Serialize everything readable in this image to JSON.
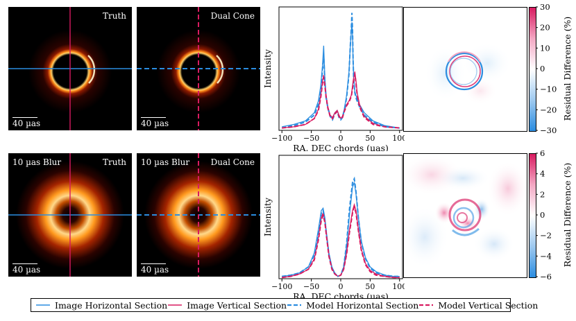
{
  "colors": {
    "blue": "#2b8de0",
    "pink": "#d81b60"
  },
  "top_row": {
    "truth": {
      "label": "Truth",
      "scale": "40 µas"
    },
    "model": {
      "label": "Dual Cone",
      "scale": "40 µas"
    }
  },
  "bottom_row": {
    "blur_label": "10 µas Blur",
    "truth": {
      "label": "Truth",
      "scale": "40 µas"
    },
    "model": {
      "label": "Dual Cone",
      "scale": "40 µas"
    }
  },
  "chart_data": [
    {
      "type": "line",
      "title": "",
      "xlabel": "RA. DEC chords (µas)",
      "ylabel": "Intensity",
      "xlim": [
        -105,
        105
      ],
      "xticks": [
        -100,
        -50,
        0,
        50,
        100
      ],
      "series": [
        {
          "name": "Image Horizontal Section",
          "style": "solid",
          "color": "#2b8de0",
          "x": [
            -100,
            -80,
            -60,
            -45,
            -38,
            -34,
            -31,
            -29,
            -27,
            -25,
            -22,
            -18,
            -14,
            -10,
            -6,
            -3,
            0,
            3,
            6,
            10,
            14,
            16,
            18,
            19,
            20,
            21,
            22,
            24,
            27,
            32,
            40,
            55,
            75,
            100
          ],
          "y": [
            0.03,
            0.05,
            0.08,
            0.15,
            0.25,
            0.38,
            0.55,
            0.72,
            0.45,
            0.3,
            0.2,
            0.13,
            0.1,
            0.15,
            0.17,
            0.12,
            0.1,
            0.12,
            0.18,
            0.3,
            0.5,
            0.7,
            0.85,
            0.92,
            0.8,
            0.6,
            0.45,
            0.33,
            0.28,
            0.22,
            0.15,
            0.08,
            0.04,
            0.02
          ]
        },
        {
          "name": "Image Vertical Section",
          "style": "solid",
          "color": "#d81b60",
          "x": [
            -100,
            -80,
            -60,
            -45,
            -38,
            -34,
            -31,
            -29,
            -27,
            -25,
            -22,
            -18,
            -14,
            -10,
            -6,
            -3,
            0,
            3,
            6,
            10,
            14,
            18,
            20,
            22,
            24,
            26,
            28,
            32,
            40,
            55,
            75,
            100
          ],
          "y": [
            0.02,
            0.03,
            0.05,
            0.1,
            0.18,
            0.3,
            0.42,
            0.47,
            0.4,
            0.3,
            0.2,
            0.13,
            0.11,
            0.15,
            0.17,
            0.13,
            0.1,
            0.12,
            0.17,
            0.22,
            0.25,
            0.3,
            0.38,
            0.45,
            0.5,
            0.42,
            0.32,
            0.22,
            0.12,
            0.06,
            0.03,
            0.02
          ]
        },
        {
          "name": "Model Horizontal Section",
          "style": "dashed",
          "color": "#2b8de0",
          "x": [
            -100,
            -80,
            -60,
            -45,
            -38,
            -34,
            -31,
            -29,
            -27,
            -25,
            -22,
            -18,
            -14,
            -10,
            -6,
            -3,
            0,
            3,
            6,
            10,
            14,
            16,
            18,
            19,
            20,
            21,
            22,
            24,
            27,
            32,
            40,
            55,
            75,
            100
          ],
          "y": [
            0.02,
            0.04,
            0.07,
            0.13,
            0.22,
            0.35,
            0.52,
            0.64,
            0.42,
            0.28,
            0.19,
            0.12,
            0.09,
            0.14,
            0.16,
            0.11,
            0.09,
            0.11,
            0.17,
            0.28,
            0.48,
            0.7,
            0.88,
            1.0,
            0.85,
            0.6,
            0.44,
            0.32,
            0.26,
            0.2,
            0.13,
            0.07,
            0.03,
            0.02
          ]
        },
        {
          "name": "Model Vertical Section",
          "style": "dashed",
          "color": "#d81b60",
          "x": [
            -100,
            -80,
            -60,
            -45,
            -38,
            -34,
            -31,
            -29,
            -27,
            -25,
            -22,
            -18,
            -14,
            -10,
            -6,
            -3,
            0,
            3,
            6,
            10,
            14,
            18,
            20,
            22,
            24,
            26,
            28,
            32,
            40,
            55,
            75,
            100
          ],
          "y": [
            0.02,
            0.03,
            0.05,
            0.1,
            0.17,
            0.28,
            0.4,
            0.45,
            0.38,
            0.29,
            0.19,
            0.12,
            0.1,
            0.14,
            0.16,
            0.12,
            0.1,
            0.11,
            0.16,
            0.21,
            0.24,
            0.29,
            0.36,
            0.43,
            0.48,
            0.4,
            0.3,
            0.2,
            0.11,
            0.05,
            0.03,
            0.02
          ]
        }
      ]
    },
    {
      "type": "line",
      "title": "",
      "xlabel": "RA. DEC chords (µas)",
      "ylabel": "Intensity",
      "xlim": [
        -105,
        105
      ],
      "xticks": [
        -100,
        -50,
        0,
        50,
        100
      ],
      "series": [
        {
          "name": "Image Horizontal Section",
          "style": "solid",
          "color": "#2b8de0",
          "x": [
            -100,
            -85,
            -70,
            -55,
            -45,
            -38,
            -33,
            -30,
            -27,
            -24,
            -20,
            -15,
            -10,
            -5,
            0,
            5,
            10,
            15,
            20,
            23,
            26,
            30,
            35,
            42,
            50,
            60,
            75,
            90,
            100
          ],
          "y": [
            0.02,
            0.03,
            0.05,
            0.1,
            0.22,
            0.42,
            0.58,
            0.6,
            0.52,
            0.38,
            0.22,
            0.1,
            0.05,
            0.02,
            0.03,
            0.1,
            0.28,
            0.55,
            0.78,
            0.82,
            0.72,
            0.52,
            0.32,
            0.18,
            0.1,
            0.06,
            0.03,
            0.02,
            0.02
          ]
        },
        {
          "name": "Image Vertical Section",
          "style": "solid",
          "color": "#d81b60",
          "x": [
            -100,
            -85,
            -70,
            -55,
            -45,
            -38,
            -33,
            -30,
            -27,
            -24,
            -20,
            -15,
            -10,
            -5,
            0,
            5,
            10,
            15,
            20,
            23,
            26,
            30,
            35,
            42,
            50,
            60,
            75,
            90,
            100
          ],
          "y": [
            0.01,
            0.02,
            0.04,
            0.08,
            0.17,
            0.35,
            0.52,
            0.56,
            0.5,
            0.36,
            0.2,
            0.09,
            0.04,
            0.02,
            0.03,
            0.08,
            0.22,
            0.42,
            0.58,
            0.63,
            0.58,
            0.42,
            0.25,
            0.13,
            0.07,
            0.04,
            0.02,
            0.01,
            0.01
          ]
        },
        {
          "name": "Model Horizontal Section",
          "style": "dashed",
          "color": "#2b8de0",
          "x": [
            -100,
            -85,
            -70,
            -55,
            -45,
            -38,
            -33,
            -30,
            -27,
            -24,
            -20,
            -15,
            -10,
            -5,
            0,
            5,
            10,
            15,
            20,
            23,
            26,
            30,
            35,
            42,
            50,
            60,
            75,
            90,
            100
          ],
          "y": [
            0.02,
            0.03,
            0.05,
            0.1,
            0.2,
            0.4,
            0.56,
            0.58,
            0.5,
            0.36,
            0.2,
            0.09,
            0.04,
            0.02,
            0.03,
            0.1,
            0.3,
            0.6,
            0.82,
            0.85,
            0.74,
            0.52,
            0.31,
            0.17,
            0.09,
            0.05,
            0.03,
            0.02,
            0.02
          ]
        },
        {
          "name": "Model Vertical Section",
          "style": "dashed",
          "color": "#d81b60",
          "x": [
            -100,
            -85,
            -70,
            -55,
            -45,
            -38,
            -33,
            -30,
            -27,
            -24,
            -20,
            -15,
            -10,
            -5,
            0,
            5,
            10,
            15,
            20,
            23,
            26,
            30,
            35,
            42,
            50,
            60,
            75,
            90,
            100
          ],
          "y": [
            0.01,
            0.02,
            0.04,
            0.08,
            0.16,
            0.33,
            0.5,
            0.54,
            0.48,
            0.35,
            0.19,
            0.08,
            0.04,
            0.02,
            0.03,
            0.08,
            0.21,
            0.4,
            0.56,
            0.61,
            0.56,
            0.41,
            0.24,
            0.12,
            0.06,
            0.03,
            0.02,
            0.01,
            0.01
          ]
        }
      ]
    },
    {
      "type": "heatmap",
      "colorbar_label": "Residual Difference (%)",
      "colorbar_range": [
        -30,
        30
      ],
      "colorbar_ticks": [
        "−30",
        "−20",
        "−10",
        "0",
        "10",
        "20",
        "30"
      ]
    },
    {
      "type": "heatmap",
      "colorbar_label": "Residual Difference (%)",
      "colorbar_range": [
        -6,
        6
      ],
      "colorbar_ticks": [
        "−6",
        "−4",
        "−2",
        "0",
        "2",
        "4",
        "6"
      ]
    }
  ],
  "legend": [
    {
      "label": "Image Horizontal Section",
      "style": "solid",
      "color": "#2b8de0"
    },
    {
      "label": "Image Vertical Section",
      "style": "solid",
      "color": "#d81b60"
    },
    {
      "label": "Model Horizontal Section",
      "style": "dashed",
      "color": "#2b8de0"
    },
    {
      "label": "Model Vertical Section",
      "style": "dashed",
      "color": "#d81b60"
    }
  ]
}
